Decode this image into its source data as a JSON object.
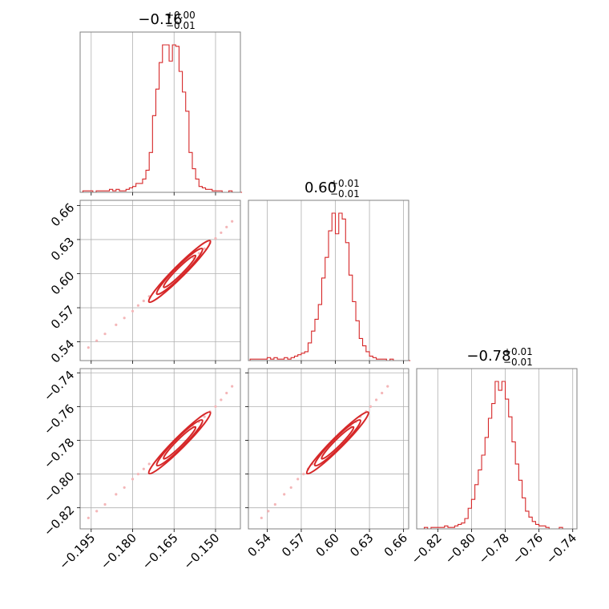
{
  "colors": {
    "series": "#d62728",
    "grid": "#b0b0b0",
    "frame": "#808080",
    "scatter": "#f4b6b8"
  },
  "chart_data": {
    "type": "corner",
    "grid": true,
    "parameters": [
      {
        "title": {
          "main": "−0.16",
          "plus": "+0.00",
          "minus": "−0.01"
        },
        "range": [
          -0.199,
          -0.141
        ],
        "ticks": [
          -0.195,
          -0.18,
          -0.165,
          -0.15
        ],
        "tick_labels": [
          "−0.195",
          "−0.180",
          "−0.165",
          "−0.150"
        ],
        "histogram": {
          "bin_start": -0.198,
          "bin_width": 0.0012,
          "counts": [
            1,
            1,
            1,
            0,
            1,
            1,
            1,
            1,
            2,
            1,
            2,
            1,
            1,
            2,
            3,
            4,
            6,
            6,
            9,
            15,
            27,
            52,
            70,
            88,
            100,
            100,
            89,
            100,
            99,
            82,
            68,
            55,
            27,
            16,
            9,
            4,
            3,
            2,
            2,
            1,
            1,
            1,
            0,
            0,
            1,
            0,
            0,
            0
          ]
        }
      },
      {
        "title": {
          "main": "0.60",
          "plus": "+0.01",
          "minus": "−0.01"
        },
        "range": [
          0.5235,
          0.6645
        ],
        "ticks": [
          0.54,
          0.57,
          0.6,
          0.63,
          0.66
        ],
        "tick_labels": [
          "0.54",
          "0.57",
          "0.60",
          "0.63",
          "0.66"
        ],
        "histogram": {
          "bin_start": 0.525,
          "bin_width": 0.003,
          "counts": [
            1,
            1,
            1,
            1,
            1,
            2,
            1,
            2,
            1,
            1,
            2,
            1,
            2,
            3,
            4,
            5,
            6,
            12,
            20,
            28,
            38,
            56,
            70,
            88,
            100,
            86,
            100,
            96,
            80,
            58,
            40,
            27,
            15,
            10,
            6,
            3,
            2,
            1,
            1,
            1,
            0,
            1,
            0,
            0,
            0,
            0,
            0
          ]
        }
      },
      {
        "title": {
          "main": "−0.78",
          "plus": "+0.01",
          "minus": "−0.01"
        },
        "range": [
          -0.8325,
          -0.7375
        ],
        "ticks": [
          -0.82,
          -0.8,
          -0.78,
          -0.76,
          -0.74
        ],
        "tick_labels": [
          "−0.82",
          "−0.80",
          "−0.78",
          "−0.76",
          "−0.74"
        ],
        "histogram": {
          "bin_start": -0.832,
          "bin_width": 0.002,
          "counts": [
            0,
            0,
            1,
            0,
            1,
            1,
            1,
            1,
            2,
            1,
            1,
            2,
            3,
            4,
            7,
            14,
            20,
            30,
            40,
            50,
            62,
            75,
            85,
            100,
            94,
            100,
            88,
            76,
            59,
            44,
            33,
            21,
            12,
            8,
            5,
            3,
            2,
            2,
            1,
            0,
            0,
            0,
            1,
            0,
            0,
            0,
            0
          ]
        }
      }
    ],
    "center": [
      -0.163,
      0.602,
      -0.7815
    ],
    "correlated_scatter": {
      "points": [
        [
          -0.196,
          0.535,
          -0.826
        ],
        [
          -0.193,
          0.541,
          -0.822
        ],
        [
          -0.19,
          0.547,
          -0.818
        ],
        [
          -0.186,
          0.555,
          -0.812
        ],
        [
          -0.183,
          0.561,
          -0.808
        ],
        [
          -0.18,
          0.567,
          -0.803
        ],
        [
          -0.178,
          0.572,
          -0.8
        ],
        [
          -0.176,
          0.576,
          -0.797
        ],
        [
          -0.174,
          0.58,
          -0.794
        ],
        [
          -0.158,
          0.614,
          -0.772
        ],
        [
          -0.156,
          0.618,
          -0.769
        ],
        [
          -0.154,
          0.622,
          -0.766
        ],
        [
          -0.152,
          0.627,
          -0.763
        ],
        [
          -0.15,
          0.631,
          -0.76
        ],
        [
          -0.148,
          0.636,
          -0.756
        ],
        [
          -0.146,
          0.641,
          -0.752
        ],
        [
          -0.144,
          0.646,
          -0.748
        ]
      ]
    }
  }
}
